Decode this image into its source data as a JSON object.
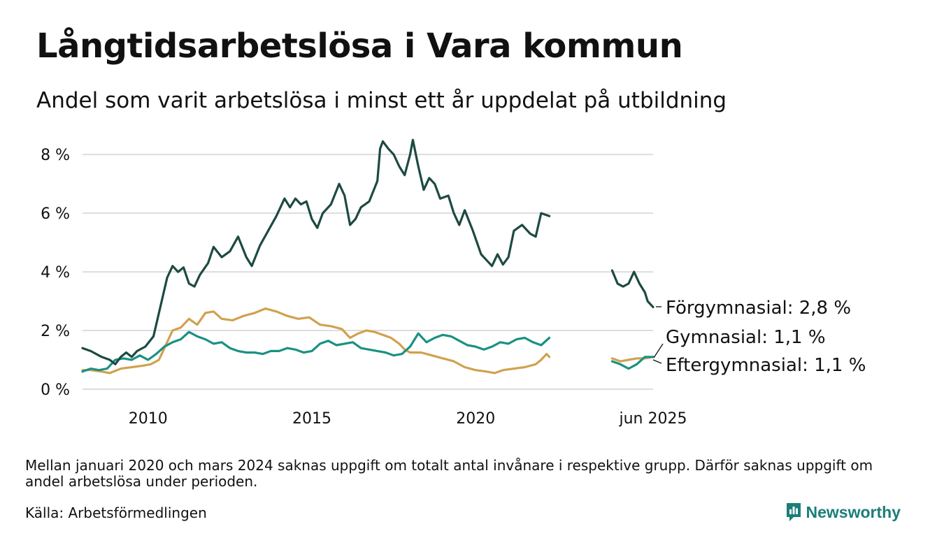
{
  "header": {
    "title": "Långtidsarbetslösa i Vara kommun",
    "subtitle": "Andel som varit arbetslösa i minst ett år uppdelat på utbildning"
  },
  "footer": {
    "note": "Mellan januari 2020 och mars 2024 saknas uppgift om totalt antal invånare i respektive grupp. Därför saknas uppgift om andel arbetslösa under perioden.",
    "source": "Källa: Arbetsförmedlingen",
    "brand": "Newsworthy"
  },
  "colors": {
    "forgymnasial": "#1d4a42",
    "gymnasial": "#d1a14f",
    "eftergymnasial": "#1a9183",
    "grid": "#dddddd",
    "brand": "#1b7e7a"
  },
  "chart_data": {
    "type": "line",
    "title": "Långtidsarbetslösa i Vara kommun",
    "subtitle": "Andel som varit arbetslösa i minst ett år uppdelat på utbildning",
    "xlabel": "",
    "ylabel": "",
    "ylim": [
      0,
      8.6
    ],
    "yticks": [
      0,
      2,
      4,
      6,
      8
    ],
    "ytick_labels": [
      "0 %",
      "2 %",
      "4 %",
      "6 %",
      "8 %"
    ],
    "xticks": [
      "2010",
      "2015",
      "2020",
      "jun 2025"
    ],
    "xtick_dates": [
      "2010-01",
      "2015-01",
      "2020-01",
      "2025-06"
    ],
    "grid": true,
    "legend": "end-of-line labels",
    "series": [
      {
        "name": "Förgymnasial",
        "end_label": "Förgymnasial: 2,8 %",
        "color": "#1d4a42",
        "segments": [
          [
            [
              "2008-01",
              1.4
            ],
            [
              "2008-04",
              1.3
            ],
            [
              "2008-08",
              1.1
            ],
            [
              "2008-11",
              1.0
            ],
            [
              "2009-01",
              0.85
            ],
            [
              "2009-03",
              1.1
            ],
            [
              "2009-05",
              1.25
            ],
            [
              "2009-07",
              1.1
            ],
            [
              "2009-09",
              1.3
            ],
            [
              "2009-12",
              1.45
            ],
            [
              "2010-03",
              1.8
            ],
            [
              "2010-05",
              2.6
            ],
            [
              "2010-06",
              3.0
            ],
            [
              "2010-08",
              3.8
            ],
            [
              "2010-10",
              4.2
            ],
            [
              "2010-12",
              4.0
            ],
            [
              "2011-02",
              4.15
            ],
            [
              "2011-04",
              3.6
            ],
            [
              "2011-06",
              3.5
            ],
            [
              "2011-08",
              3.9
            ],
            [
              "2011-11",
              4.3
            ],
            [
              "2012-01",
              4.85
            ],
            [
              "2012-04",
              4.5
            ],
            [
              "2012-07",
              4.7
            ],
            [
              "2012-10",
              5.2
            ],
            [
              "2013-01",
              4.5
            ],
            [
              "2013-03",
              4.2
            ],
            [
              "2013-06",
              4.9
            ],
            [
              "2013-09",
              5.4
            ],
            [
              "2013-12",
              5.9
            ],
            [
              "2014-03",
              6.5
            ],
            [
              "2014-05",
              6.2
            ],
            [
              "2014-07",
              6.5
            ],
            [
              "2014-09",
              6.3
            ],
            [
              "2014-11",
              6.4
            ],
            [
              "2015-01",
              5.8
            ],
            [
              "2015-03",
              5.5
            ],
            [
              "2015-05",
              6.0
            ],
            [
              "2015-08",
              6.3
            ],
            [
              "2015-11",
              7.0
            ],
            [
              "2016-01",
              6.6
            ],
            [
              "2016-03",
              5.6
            ],
            [
              "2016-05",
              5.8
            ],
            [
              "2016-07",
              6.2
            ],
            [
              "2016-10",
              6.4
            ],
            [
              "2017-01",
              7.1
            ],
            [
              "2017-02",
              8.2
            ],
            [
              "2017-03",
              8.45
            ],
            [
              "2017-05",
              8.2
            ],
            [
              "2017-07",
              8.0
            ],
            [
              "2017-09",
              7.6
            ],
            [
              "2017-11",
              7.3
            ],
            [
              "2018-01",
              8.0
            ],
            [
              "2018-02",
              8.5
            ],
            [
              "2018-04",
              7.6
            ],
            [
              "2018-06",
              6.8
            ],
            [
              "2018-08",
              7.2
            ],
            [
              "2018-10",
              7.0
            ],
            [
              "2018-12",
              6.5
            ],
            [
              "2019-03",
              6.6
            ],
            [
              "2019-05",
              6.0
            ],
            [
              "2019-07",
              5.6
            ],
            [
              "2019-09",
              6.1
            ],
            [
              "2019-12",
              5.4
            ],
            [
              "2020-03",
              4.6
            ],
            [
              "2020-05",
              4.4
            ],
            [
              "2020-07",
              4.2
            ],
            [
              "2020-09",
              4.6
            ],
            [
              "2020-11",
              4.25
            ],
            [
              "2021-01",
              4.5
            ],
            [
              "2021-03",
              5.4
            ],
            [
              "2021-06",
              5.6
            ],
            [
              "2021-09",
              5.3
            ],
            [
              "2021-11",
              5.2
            ],
            [
              "2022-01",
              6.0
            ],
            [
              "2022-04",
              5.9
            ]
          ],
          [
            [
              "2024-03",
              4.05
            ],
            [
              "2024-05",
              3.6
            ],
            [
              "2024-07",
              3.5
            ],
            [
              "2024-09",
              3.6
            ],
            [
              "2024-11",
              4.0
            ],
            [
              "2025-01",
              3.6
            ],
            [
              "2025-03",
              3.3
            ],
            [
              "2025-04",
              3.0
            ],
            [
              "2025-06",
              2.8
            ]
          ]
        ]
      },
      {
        "name": "Gymnasial",
        "end_label": "Gymnasial: 1,1 %",
        "color": "#d1a14f",
        "segments": [
          [
            [
              "2008-01",
              0.65
            ],
            [
              "2008-04",
              0.65
            ],
            [
              "2008-08",
              0.6
            ],
            [
              "2008-11",
              0.55
            ],
            [
              "2009-03",
              0.7
            ],
            [
              "2009-07",
              0.75
            ],
            [
              "2009-11",
              0.8
            ],
            [
              "2010-02",
              0.85
            ],
            [
              "2010-05",
              1.0
            ],
            [
              "2010-08",
              1.6
            ],
            [
              "2010-10",
              2.0
            ],
            [
              "2011-01",
              2.1
            ],
            [
              "2011-04",
              2.4
            ],
            [
              "2011-07",
              2.2
            ],
            [
              "2011-10",
              2.6
            ],
            [
              "2012-01",
              2.65
            ],
            [
              "2012-04",
              2.4
            ],
            [
              "2012-08",
              2.35
            ],
            [
              "2012-12",
              2.5
            ],
            [
              "2013-04",
              2.6
            ],
            [
              "2013-08",
              2.75
            ],
            [
              "2013-12",
              2.65
            ],
            [
              "2014-04",
              2.5
            ],
            [
              "2014-08",
              2.4
            ],
            [
              "2014-12",
              2.45
            ],
            [
              "2015-04",
              2.2
            ],
            [
              "2015-08",
              2.15
            ],
            [
              "2015-12",
              2.05
            ],
            [
              "2016-03",
              1.75
            ],
            [
              "2016-06",
              1.9
            ],
            [
              "2016-09",
              2.0
            ],
            [
              "2016-12",
              1.95
            ],
            [
              "2017-03",
              1.85
            ],
            [
              "2017-06",
              1.75
            ],
            [
              "2017-09",
              1.55
            ],
            [
              "2017-11",
              1.35
            ],
            [
              "2018-01",
              1.25
            ],
            [
              "2018-05",
              1.25
            ],
            [
              "2018-09",
              1.15
            ],
            [
              "2019-01",
              1.05
            ],
            [
              "2019-05",
              0.95
            ],
            [
              "2019-09",
              0.75
            ],
            [
              "2020-01",
              0.65
            ],
            [
              "2020-05",
              0.6
            ],
            [
              "2020-08",
              0.55
            ],
            [
              "2020-11",
              0.65
            ],
            [
              "2021-03",
              0.7
            ],
            [
              "2021-07",
              0.75
            ],
            [
              "2021-11",
              0.85
            ],
            [
              "2022-01",
              1.0
            ],
            [
              "2022-03",
              1.2
            ],
            [
              "2022-04",
              1.1
            ]
          ],
          [
            [
              "2024-03",
              1.05
            ],
            [
              "2024-06",
              0.95
            ],
            [
              "2024-09",
              1.0
            ],
            [
              "2024-12",
              1.05
            ],
            [
              "2025-03",
              1.05
            ],
            [
              "2025-06",
              1.1
            ]
          ]
        ]
      },
      {
        "name": "Eftergymnasial",
        "end_label": "Eftergymnasial: 1,1 %",
        "color": "#1a9183",
        "segments": [
          [
            [
              "2008-01",
              0.6
            ],
            [
              "2008-04",
              0.7
            ],
            [
              "2008-07",
              0.65
            ],
            [
              "2008-10",
              0.7
            ],
            [
              "2009-01",
              1.0
            ],
            [
              "2009-04",
              1.05
            ],
            [
              "2009-07",
              1.0
            ],
            [
              "2009-10",
              1.15
            ],
            [
              "2010-01",
              1.0
            ],
            [
              "2010-04",
              1.2
            ],
            [
              "2010-07",
              1.45
            ],
            [
              "2010-10",
              1.6
            ],
            [
              "2011-01",
              1.7
            ],
            [
              "2011-04",
              1.95
            ],
            [
              "2011-07",
              1.8
            ],
            [
              "2011-10",
              1.7
            ],
            [
              "2012-01",
              1.55
            ],
            [
              "2012-04",
              1.6
            ],
            [
              "2012-07",
              1.4
            ],
            [
              "2012-10",
              1.3
            ],
            [
              "2013-01",
              1.25
            ],
            [
              "2013-04",
              1.25
            ],
            [
              "2013-07",
              1.2
            ],
            [
              "2013-10",
              1.3
            ],
            [
              "2014-01",
              1.3
            ],
            [
              "2014-04",
              1.4
            ],
            [
              "2014-07",
              1.35
            ],
            [
              "2014-10",
              1.25
            ],
            [
              "2015-01",
              1.3
            ],
            [
              "2015-04",
              1.55
            ],
            [
              "2015-07",
              1.65
            ],
            [
              "2015-10",
              1.5
            ],
            [
              "2016-01",
              1.55
            ],
            [
              "2016-04",
              1.6
            ],
            [
              "2016-07",
              1.4
            ],
            [
              "2016-10",
              1.35
            ],
            [
              "2017-01",
              1.3
            ],
            [
              "2017-04",
              1.25
            ],
            [
              "2017-07",
              1.15
            ],
            [
              "2017-10",
              1.2
            ],
            [
              "2018-01",
              1.45
            ],
            [
              "2018-04",
              1.9
            ],
            [
              "2018-07",
              1.6
            ],
            [
              "2018-10",
              1.75
            ],
            [
              "2019-01",
              1.85
            ],
            [
              "2019-04",
              1.8
            ],
            [
              "2019-07",
              1.65
            ],
            [
              "2019-10",
              1.5
            ],
            [
              "2020-01",
              1.45
            ],
            [
              "2020-04",
              1.35
            ],
            [
              "2020-07",
              1.45
            ],
            [
              "2020-10",
              1.6
            ],
            [
              "2021-01",
              1.55
            ],
            [
              "2021-04",
              1.7
            ],
            [
              "2021-07",
              1.75
            ],
            [
              "2021-10",
              1.6
            ],
            [
              "2022-01",
              1.5
            ],
            [
              "2022-04",
              1.75
            ]
          ],
          [
            [
              "2024-03",
              0.95
            ],
            [
              "2024-06",
              0.85
            ],
            [
              "2024-09",
              0.7
            ],
            [
              "2024-12",
              0.85
            ],
            [
              "2025-03",
              1.1
            ],
            [
              "2025-06",
              1.1
            ]
          ]
        ]
      }
    ]
  }
}
